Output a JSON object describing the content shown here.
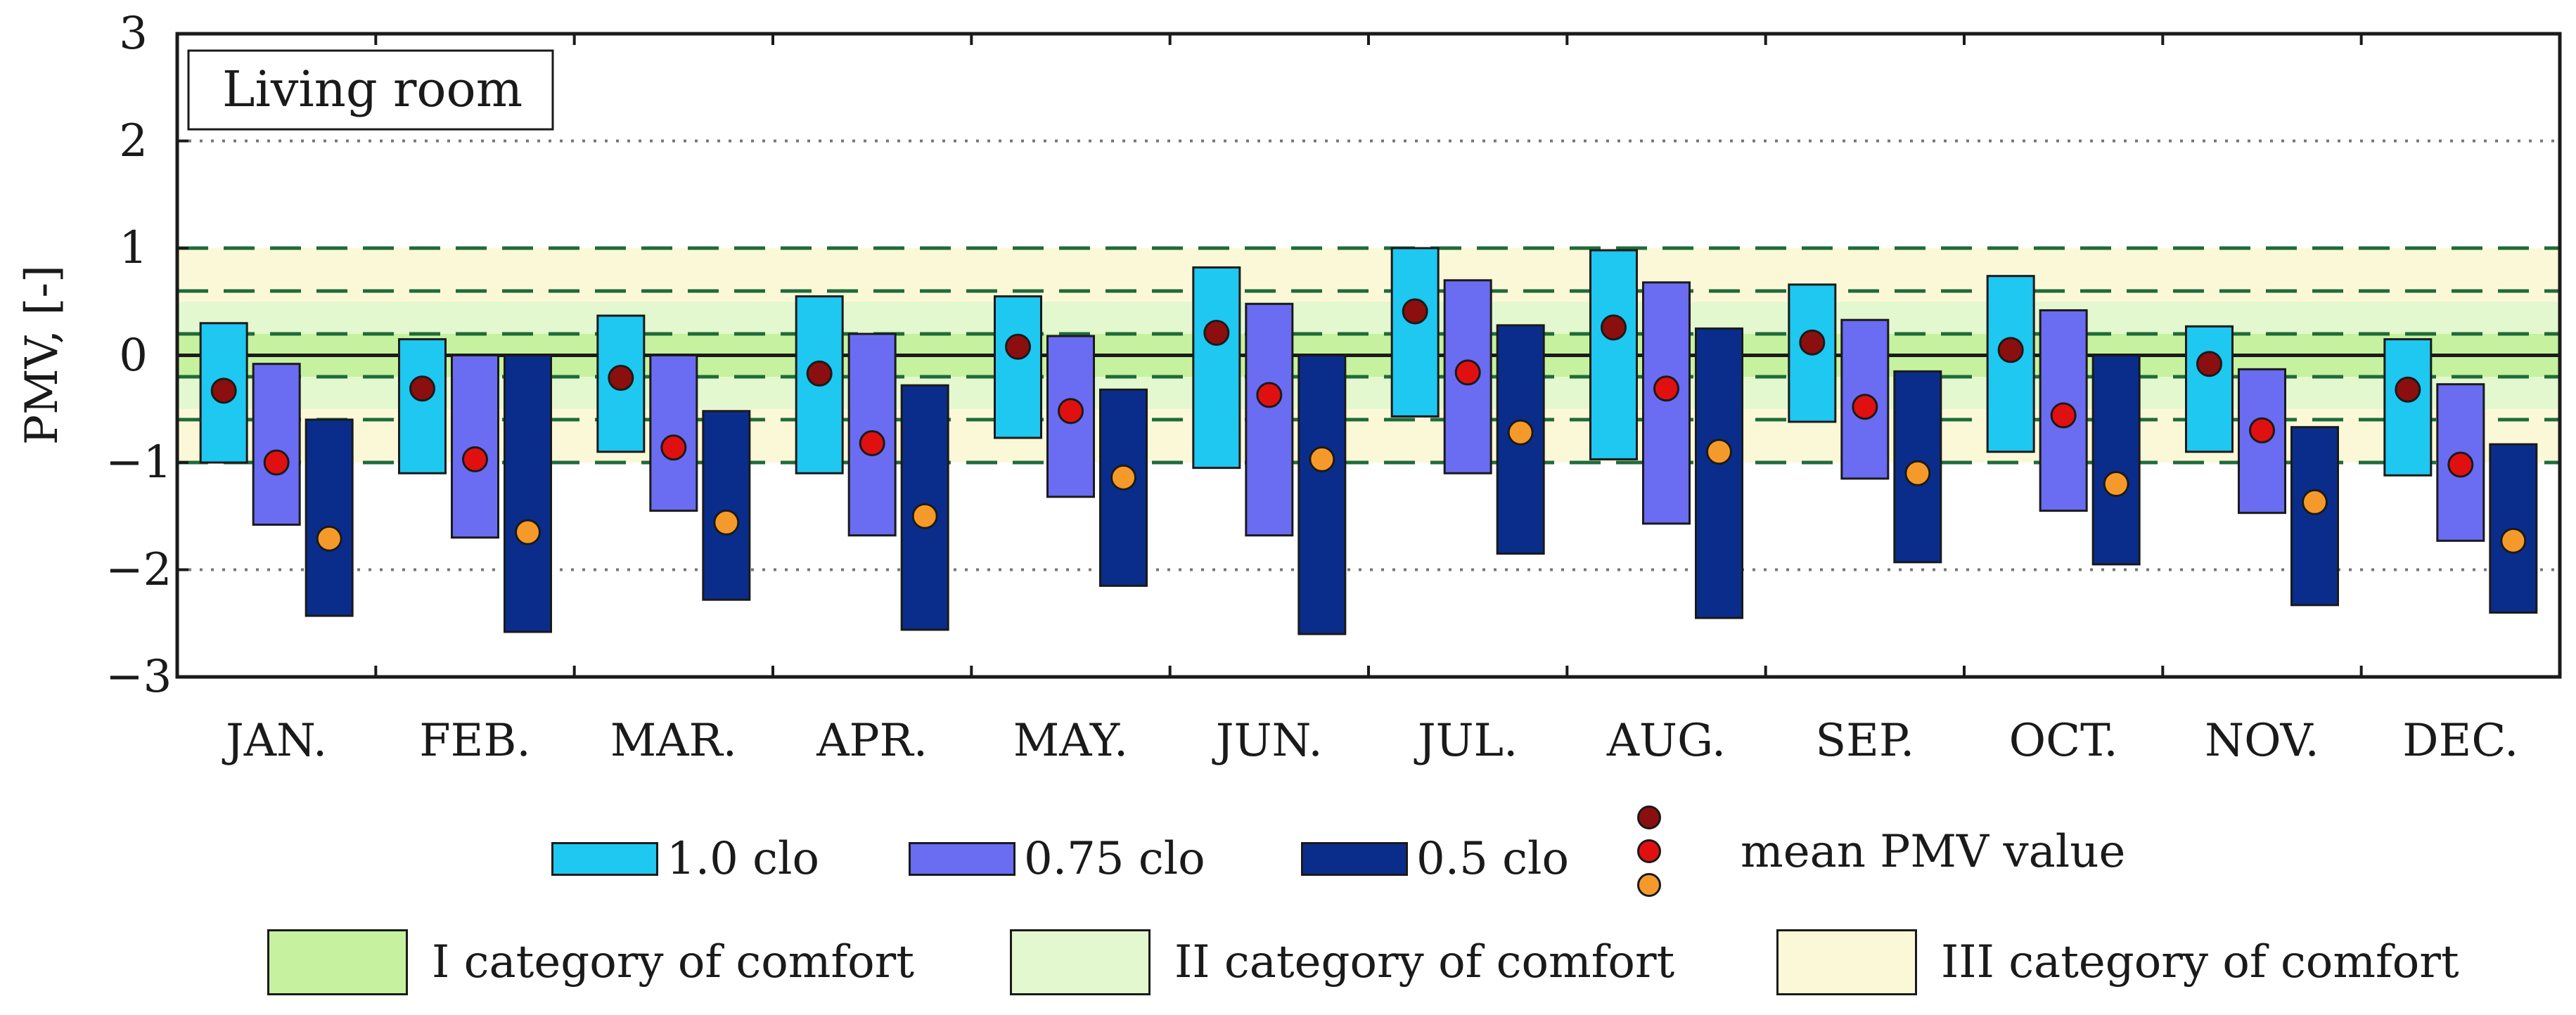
{
  "chart_data": {
    "type": "floating-bar",
    "title": "Living room",
    "ylabel": "PMV, [-]",
    "ylim": [
      -3,
      3
    ],
    "yticks": [
      "3",
      "2",
      "1",
      "0",
      "−1",
      "−2",
      "−3"
    ],
    "ytick_values": [
      3,
      2,
      1,
      0,
      -1,
      -2,
      -3
    ],
    "dotted_lines": [
      2,
      -2
    ],
    "dashed_lines": [
      1,
      0.6,
      0.2,
      -0.2,
      -0.6,
      -1
    ],
    "comfort_bands": [
      {
        "name": "I category of comfort",
        "range": [
          -0.2,
          0.2
        ],
        "color": "#c6f29f"
      },
      {
        "name": "II category of comfort",
        "range": [
          -0.5,
          0.5
        ],
        "color": "#e3f8cf"
      },
      {
        "name": "III category of comfort",
        "range": [
          -1.0,
          1.0
        ],
        "color": "#fbf8d8"
      }
    ],
    "categories": [
      "JAN.",
      "FEB.",
      "MAR.",
      "APR.",
      "MAY.",
      "JUN.",
      "JUL.",
      "AUG.",
      "SEP.",
      "OCT.",
      "NOV.",
      "DEC."
    ],
    "series": [
      {
        "name": "1.0 clo",
        "color": "#1ec8f0",
        "dot_color": "#8b0f0f",
        "low": [
          -1.0,
          -1.1,
          -0.9,
          -1.1,
          -0.77,
          -1.05,
          -0.57,
          -0.97,
          -0.62,
          -0.9,
          -0.9,
          -1.12
        ],
        "high": [
          0.3,
          0.15,
          0.37,
          0.55,
          0.55,
          0.82,
          1.0,
          0.98,
          0.66,
          0.74,
          0.27,
          0.15
        ],
        "mean": [
          -0.33,
          -0.31,
          -0.21,
          -0.17,
          0.08,
          0.21,
          0.41,
          0.26,
          0.12,
          0.05,
          -0.08,
          -0.32
        ]
      },
      {
        "name": "0.75 clo",
        "color": "#6a6cf2",
        "dot_color": "#e01010",
        "low": [
          -1.58,
          -1.7,
          -1.45,
          -1.68,
          -1.32,
          -1.68,
          -1.1,
          -1.57,
          -1.15,
          -1.45,
          -1.47,
          -1.73
        ],
        "high": [
          -0.08,
          0.0,
          0.0,
          0.2,
          0.18,
          0.48,
          0.7,
          0.68,
          0.33,
          0.42,
          -0.13,
          -0.27
        ],
        "mean": [
          -1.0,
          -0.97,
          -0.86,
          -0.82,
          -0.52,
          -0.37,
          -0.16,
          -0.31,
          -0.48,
          -0.56,
          -0.7,
          -1.02
        ]
      },
      {
        "name": "0.5 clo",
        "color": "#0a2d8c",
        "dot_color": "#f59a2a",
        "low": [
          -2.43,
          -2.58,
          -2.28,
          -2.56,
          -2.15,
          -2.6,
          -1.85,
          -2.45,
          -1.93,
          -1.95,
          -2.33,
          -2.4
        ],
        "high": [
          -0.6,
          0.0,
          -0.52,
          -0.28,
          -0.32,
          0.0,
          0.28,
          0.25,
          -0.15,
          0.0,
          -0.67,
          -0.83
        ],
        "mean": [
          -1.71,
          -1.65,
          -1.56,
          -1.5,
          -1.14,
          -0.97,
          -0.72,
          -0.9,
          -1.1,
          -1.2,
          -1.37,
          -1.73
        ]
      }
    ],
    "legend": {
      "mean_label": "mean PMV value"
    }
  }
}
